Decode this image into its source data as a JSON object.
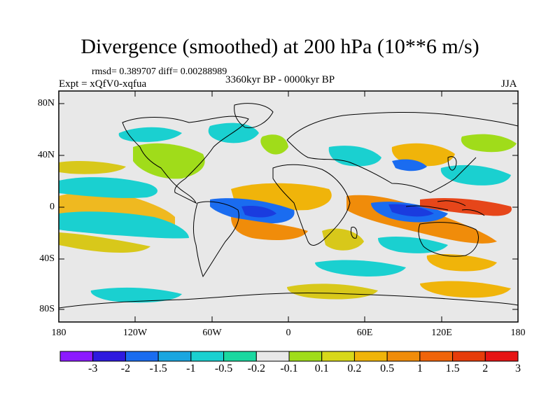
{
  "title": "Divergence (smoothed) at 200 hPa (10**6 m/s)",
  "stats": "rmsd= 0.389707 diff= 0.00288989",
  "expt": "Expt = xQfV0-xqfua",
  "period": "3360kyr BP - 0000kyr BP",
  "season": "JJA",
  "y_axis_labels": [
    "80N",
    "40N",
    "0",
    "40S",
    "80S"
  ],
  "x_axis_labels": [
    "180",
    "120W",
    "60W",
    "0",
    "60E",
    "120E",
    "180"
  ],
  "colorbar": {
    "colors": [
      "#8c1aff",
      "#2e1adf",
      "#1a6cf0",
      "#1aa6e0",
      "#1ad0d0",
      "#1ad8a0",
      "#e8e8e8",
      "#a0dc1a",
      "#d8d81a",
      "#f0b40a",
      "#f08c0a",
      "#f0640a",
      "#e63c0a",
      "#e61414"
    ],
    "labels": [
      "-3",
      "-2",
      "-1.5",
      "-1",
      "-0.5",
      "-0.2",
      "-0.1",
      "0.1",
      "0.2",
      "0.5",
      "1",
      "1.5",
      "2",
      "3"
    ]
  },
  "field_colors": {
    "neutral": "#e8e8e8",
    "strong_neg": "#1a3cdf",
    "mid_neg": "#1aa6e0",
    "weak_neg": "#1ad0d0",
    "weak_pos": "#a0dc1a",
    "mid_pos": "#d8c81a",
    "strong_pos": "#f08c0a",
    "max_pos": "#e6461a"
  }
}
